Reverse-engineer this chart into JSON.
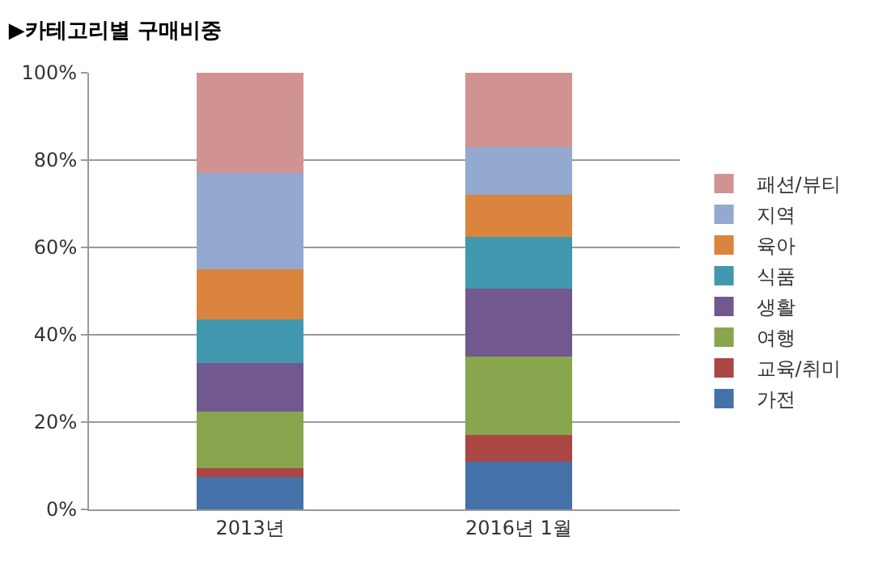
{
  "chart_data": {
    "type": "bar",
    "title": "▶카테고리별 구매비중",
    "stacked": true,
    "categories": [
      "2013년",
      "2016년 1월"
    ],
    "series": [
      {
        "name": "가전",
        "color": "#4472a8",
        "values": [
          7.5,
          11
        ]
      },
      {
        "name": "교육/취미",
        "color": "#aa4643",
        "values": [
          2,
          6
        ]
      },
      {
        "name": "여행",
        "color": "#89a54e",
        "values": [
          13,
          18
        ]
      },
      {
        "name": "생활",
        "color": "#71588f",
        "values": [
          11,
          15.5
        ]
      },
      {
        "name": "식품",
        "color": "#4198af",
        "values": [
          10,
          12
        ]
      },
      {
        "name": "육아",
        "color": "#db843d",
        "values": [
          11.5,
          9.5
        ]
      },
      {
        "name": "지역",
        "color": "#93a9cf",
        "values": [
          22,
          11
        ]
      },
      {
        "name": "패션/뷰티",
        "color": "#d19392",
        "values": [
          23,
          17
        ]
      }
    ],
    "ylim": [
      0,
      100
    ],
    "yticks": [
      {
        "value": 0,
        "label": "0%"
      },
      {
        "value": 20,
        "label": "20%"
      },
      {
        "value": 40,
        "label": "40%"
      },
      {
        "value": 60,
        "label": "60%"
      },
      {
        "value": 80,
        "label": "80%"
      },
      {
        "value": 100,
        "label": "100%"
      }
    ],
    "grid": "y",
    "legend": "right"
  }
}
